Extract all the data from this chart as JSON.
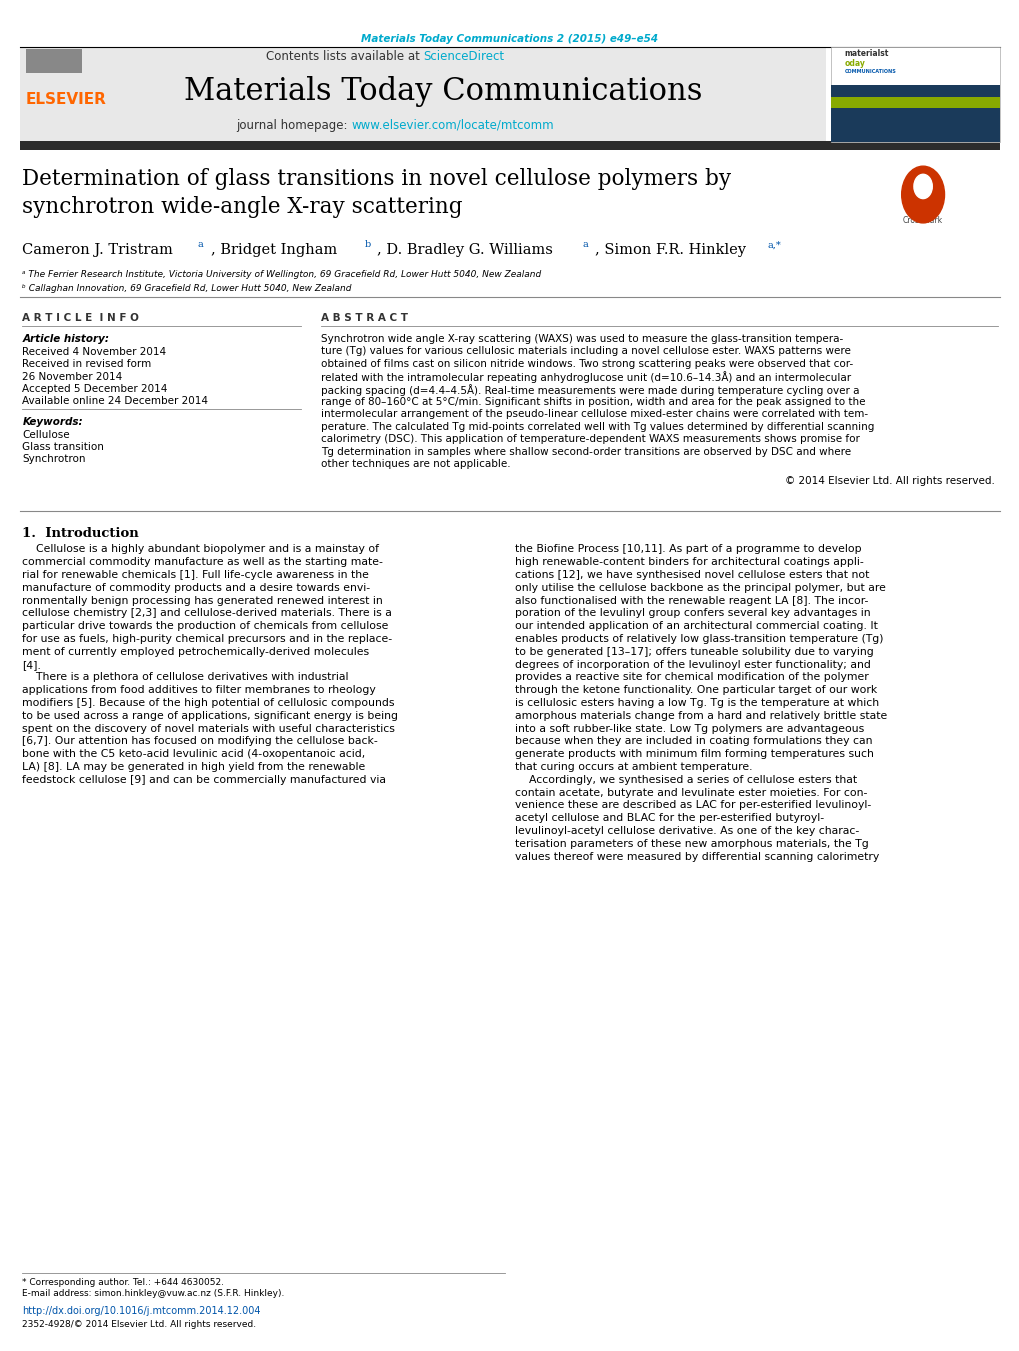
{
  "page_width": 10.2,
  "page_height": 13.51,
  "bg_color": "#ffffff",
  "header_citation": "Materials Today Communications 2 (2015) e49–e54",
  "header_citation_color": "#00aacc",
  "journal_name": "Materials Today Communications",
  "journal_name_fontsize": 22,
  "contents_text": "Contents lists available at ",
  "sciencedirect_text": "ScienceDirect",
  "sciencedirect_color": "#00aacc",
  "journal_homepage_text": "journal homepage: ",
  "journal_homepage_url": "www.elsevier.com/locate/mtcomm",
  "journal_homepage_color": "#00aacc",
  "elsevier_color": "#FF6600",
  "header_bg": "#e8e8e8",
  "dark_bar_color": "#333333",
  "article_title": "Determination of glass transitions in novel cellulose polymers by\nsynchrotron wide-angle X-ray scattering",
  "article_title_fontsize": 15.5,
  "affil_a": "ᵃ The Ferrier Research Institute, Victoria University of Wellington, 69 Gracefield Rd, Lower Hutt 5040, New Zealand",
  "affil_b": "ᵇ Callaghan Innovation, 69 Gracefield Rd, Lower Hutt 5040, New Zealand",
  "article_info_label": "A R T I C L E  I N F O",
  "abstract_label": "A B S T R A C T",
  "article_history_label": "Article history:",
  "received1": "Received 4 November 2014",
  "received_revised": "Received in revised form",
  "revised_date": "26 November 2014",
  "accepted": "Accepted 5 December 2014",
  "available": "Available online 24 December 2014",
  "keywords_label": "Keywords:",
  "keyword1": "Cellulose",
  "keyword2": "Glass transition",
  "keyword3": "Synchrotron",
  "copyright": "© 2014 Elsevier Ltd. All rights reserved.",
  "intro_title": "1.  Introduction",
  "footer_text": "* Corresponding author. Tel.: +644 4630052.",
  "footer_email": "E-mail address: simon.hinkley@vuw.ac.nz (S.F.R. Hinkley).",
  "footer_doi": "http://dx.doi.org/10.1016/j.mtcomm.2014.12.004",
  "footer_issn": "2352-4928/© 2014 Elsevier Ltd. All rights reserved."
}
